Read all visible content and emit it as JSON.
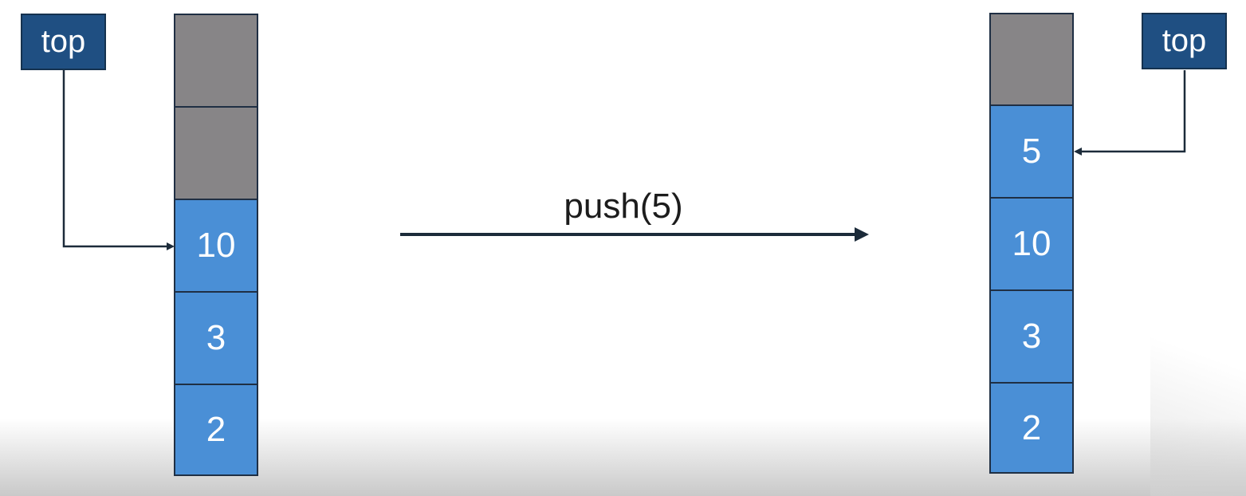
{
  "left_stack": {
    "pointer_label": "top",
    "cells": [
      "",
      "",
      "10",
      "3",
      "2"
    ]
  },
  "operation": {
    "label": "push(5)"
  },
  "right_stack": {
    "pointer_label": "top",
    "cells": [
      "",
      "5",
      "10",
      "3",
      "2"
    ]
  },
  "colors": {
    "empty_cell": "#878587",
    "filled_cell": "#4a8fd6",
    "pointer_box": "#1f4f82",
    "line": "#1c2b3a"
  }
}
